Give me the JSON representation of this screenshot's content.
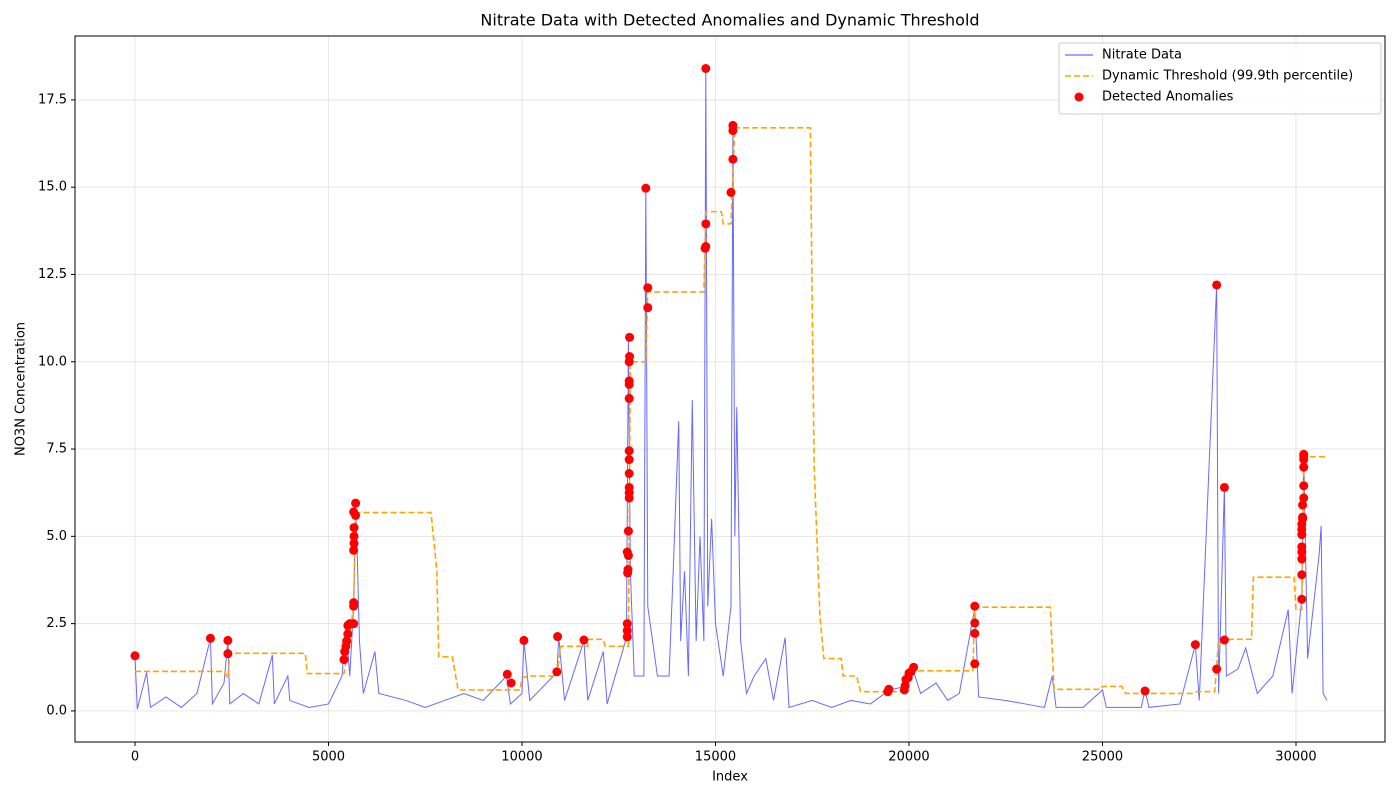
{
  "chart_data": {
    "type": "line",
    "title": "Nitrate Data with Detected Anomalies and Dynamic Threshold",
    "xlabel": "Index",
    "ylabel": "NO3N Concentration",
    "xlim": [
      -1550,
      32300
    ],
    "ylim": [
      -0.89,
      19.33
    ],
    "xticks": [
      0,
      5000,
      10000,
      15000,
      20000,
      25000,
      30000
    ],
    "yticks": [
      {
        "value": 0,
        "label": "0.0"
      },
      2.5,
      {
        "value": 5,
        "label": "5.0"
      },
      7.5,
      {
        "value": 10,
        "label": "10.0"
      },
      12.5,
      {
        "value": 15,
        "label": "15.0"
      },
      17.5
    ],
    "grid": true,
    "legend": "upper right",
    "series": [
      {
        "name": "Nitrate Data",
        "type": "line",
        "color": "#4444ff",
        "linestyle": "solid",
        "x": [
          0,
          60,
          300,
          400,
          800,
          1200,
          1600,
          1950,
          2000,
          2300,
          2400,
          2450,
          2800,
          3200,
          3550,
          3600,
          3950,
          4000,
          4500,
          5000,
          5350,
          5450,
          5550,
          5650,
          5700,
          5750,
          5800,
          5900,
          6200,
          6300,
          7000,
          7500,
          8000,
          8500,
          9000,
          9600,
          9700,
          10000,
          10050,
          10200,
          10900,
          10950,
          11100,
          11600,
          11700,
          12100,
          12200,
          12700,
          12750,
          12800,
          12900,
          13150,
          13200,
          13250,
          13500,
          13800,
          13900,
          14050,
          14100,
          14200,
          14300,
          14400,
          14500,
          14600,
          14700,
          14750,
          14800,
          14900,
          15000,
          15200,
          15400,
          15450,
          15500,
          15550,
          15650,
          15800,
          16000,
          16300,
          16500,
          16800,
          16900,
          17500,
          18000,
          18500,
          19000,
          19500,
          19900,
          20100,
          20300,
          20700,
          21000,
          21300,
          21700,
          21800,
          22500,
          23000,
          23500,
          23700,
          23800,
          24500,
          25000,
          25100,
          26000,
          26100,
          26200,
          27000,
          27400,
          27500,
          27950,
          28000,
          28150,
          28200,
          28500,
          28700,
          29000,
          29400,
          29800,
          29900,
          30150,
          30200,
          30300,
          30600,
          30650,
          30700,
          30800
        ],
        "values": [
          1.55,
          0.05,
          1.1,
          0.1,
          0.4,
          0.1,
          0.5,
          2.07,
          0.2,
          0.8,
          2.0,
          0.2,
          0.5,
          0.2,
          1.6,
          0.2,
          1.0,
          0.3,
          0.1,
          0.2,
          1.0,
          2.5,
          1.0,
          3.0,
          5.9,
          4.2,
          2.0,
          0.5,
          1.7,
          0.5,
          0.3,
          0.1,
          0.3,
          0.5,
          0.3,
          1.0,
          0.2,
          0.5,
          2.0,
          0.3,
          1.1,
          2.1,
          0.3,
          2.0,
          0.3,
          1.7,
          0.2,
          2.1,
          10.7,
          4.0,
          1.0,
          1.0,
          15.0,
          3.0,
          1.0,
          1.0,
          3.8,
          8.3,
          2.0,
          4.0,
          1.0,
          8.9,
          2.0,
          5.0,
          2.0,
          18.4,
          3.0,
          5.5,
          2.5,
          1.0,
          3.0,
          16.7,
          5.0,
          8.7,
          2.0,
          0.5,
          1.0,
          1.5,
          0.3,
          2.1,
          0.1,
          0.3,
          0.1,
          0.3,
          0.2,
          0.6,
          0.7,
          1.2,
          0.5,
          0.8,
          0.3,
          0.5,
          2.95,
          0.4,
          0.3,
          0.2,
          0.1,
          1.0,
          0.1,
          0.1,
          0.6,
          0.1,
          0.1,
          0.6,
          0.1,
          0.2,
          1.9,
          0.3,
          12.2,
          0.5,
          6.4,
          1.0,
          1.2,
          1.8,
          0.5,
          1.0,
          2.9,
          0.5,
          3.2,
          7.3,
          1.5,
          4.5,
          5.3,
          0.5,
          0.3
        ]
      },
      {
        "name": "Dynamic Threshold (99.9th percentile)",
        "type": "line",
        "color": "#ffa500",
        "linestyle": "dashed",
        "x": [
          0,
          2300,
          2400,
          2450,
          4400,
          4450,
          5400,
          5500,
          5650,
          5700,
          7650,
          7800,
          7850,
          8200,
          8350,
          9950,
          10000,
          10200,
          10900,
          11000,
          11700,
          11700,
          12100,
          12150,
          12750,
          12800,
          13200,
          13250,
          14700,
          14750,
          15150,
          15200,
          15400,
          15500,
          17450,
          17500,
          17550,
          17650,
          17700,
          17800,
          18250,
          18300,
          18650,
          18750,
          19900,
          20000,
          21650,
          21700,
          23650,
          23750,
          24950,
          25000,
          25500,
          25600,
          27300,
          27400,
          27900,
          28000,
          28850,
          28900,
          29950,
          30000,
          30150,
          30200,
          30750
        ],
        "values": [
          1.13,
          1.13,
          0.95,
          1.65,
          1.65,
          1.07,
          1.07,
          1.75,
          3.0,
          5.68,
          5.68,
          4.0,
          1.55,
          1.55,
          0.6,
          0.6,
          0.95,
          1.0,
          1.0,
          1.85,
          1.85,
          2.05,
          2.05,
          1.85,
          1.85,
          10.0,
          10.0,
          12.0,
          12.0,
          14.3,
          14.3,
          13.95,
          13.95,
          16.7,
          16.7,
          11.5,
          7.0,
          4.1,
          2.7,
          1.5,
          1.5,
          1.0,
          1.0,
          0.55,
          0.55,
          1.15,
          1.15,
          2.97,
          2.97,
          0.62,
          0.62,
          0.7,
          0.7,
          0.5,
          0.5,
          0.55,
          0.55,
          2.05,
          2.05,
          3.83,
          3.83,
          2.9,
          2.9,
          7.28,
          7.28
        ]
      },
      {
        "name": "Detected Anomalies",
        "type": "scatter",
        "color": "#ff0000",
        "x": [
          0,
          1950,
          2400,
          2400,
          5400,
          5420,
          5450,
          5470,
          5500,
          5500,
          5550,
          5650,
          5650,
          5650,
          5650,
          5660,
          5660,
          5660,
          5650,
          5700,
          5700,
          9620,
          9720,
          10050,
          10900,
          10920,
          11600,
          12720,
          12720,
          12720,
          12730,
          12740,
          12750,
          12720,
          12750,
          12770,
          12770,
          12770,
          12770,
          12770,
          12770,
          12770,
          12770,
          12770,
          12770,
          12780,
          12780,
          13200,
          13250,
          13250,
          14730,
          14750,
          14750,
          14750,
          15400,
          15450,
          15450,
          15450,
          19450,
          19480,
          19880,
          19900,
          19920,
          19980,
          20000,
          20050,
          20120,
          21700,
          21700,
          21700,
          21700,
          26100,
          27400,
          27950,
          27950,
          28150,
          28150,
          30150,
          30150,
          30150,
          30150,
          30150,
          30150,
          30150,
          30150,
          30170,
          30170,
          30170,
          30200,
          30200,
          30200,
          30200,
          30200,
          30200
        ],
        "values": [
          1.58,
          2.08,
          2.02,
          1.64,
          1.47,
          1.7,
          1.85,
          2.0,
          2.2,
          2.45,
          2.5,
          2.5,
          3.0,
          3.1,
          4.6,
          4.8,
          5.0,
          5.25,
          5.7,
          5.6,
          5.95,
          1.05,
          0.8,
          2.02,
          1.12,
          2.13,
          2.03,
          2.12,
          2.3,
          2.5,
          3.95,
          4.05,
          4.45,
          4.55,
          5.15,
          6.1,
          6.25,
          6.4,
          6.8,
          7.2,
          7.45,
          8.95,
          9.35,
          9.45,
          10.0,
          10.15,
          10.7,
          14.97,
          12.12,
          11.55,
          13.25,
          13.3,
          13.95,
          18.4,
          14.85,
          15.8,
          16.62,
          16.77,
          0.55,
          0.62,
          0.6,
          0.72,
          0.9,
          0.95,
          1.08,
          1.12,
          1.25,
          1.35,
          2.22,
          2.52,
          3.0,
          0.57,
          1.9,
          1.2,
          12.2,
          2.03,
          6.4,
          3.2,
          3.9,
          4.35,
          4.55,
          4.7,
          5.05,
          5.2,
          5.35,
          5.5,
          5.55,
          5.9,
          6.1,
          6.45,
          6.98,
          7.2,
          7.3,
          7.35
        ]
      }
    ]
  }
}
